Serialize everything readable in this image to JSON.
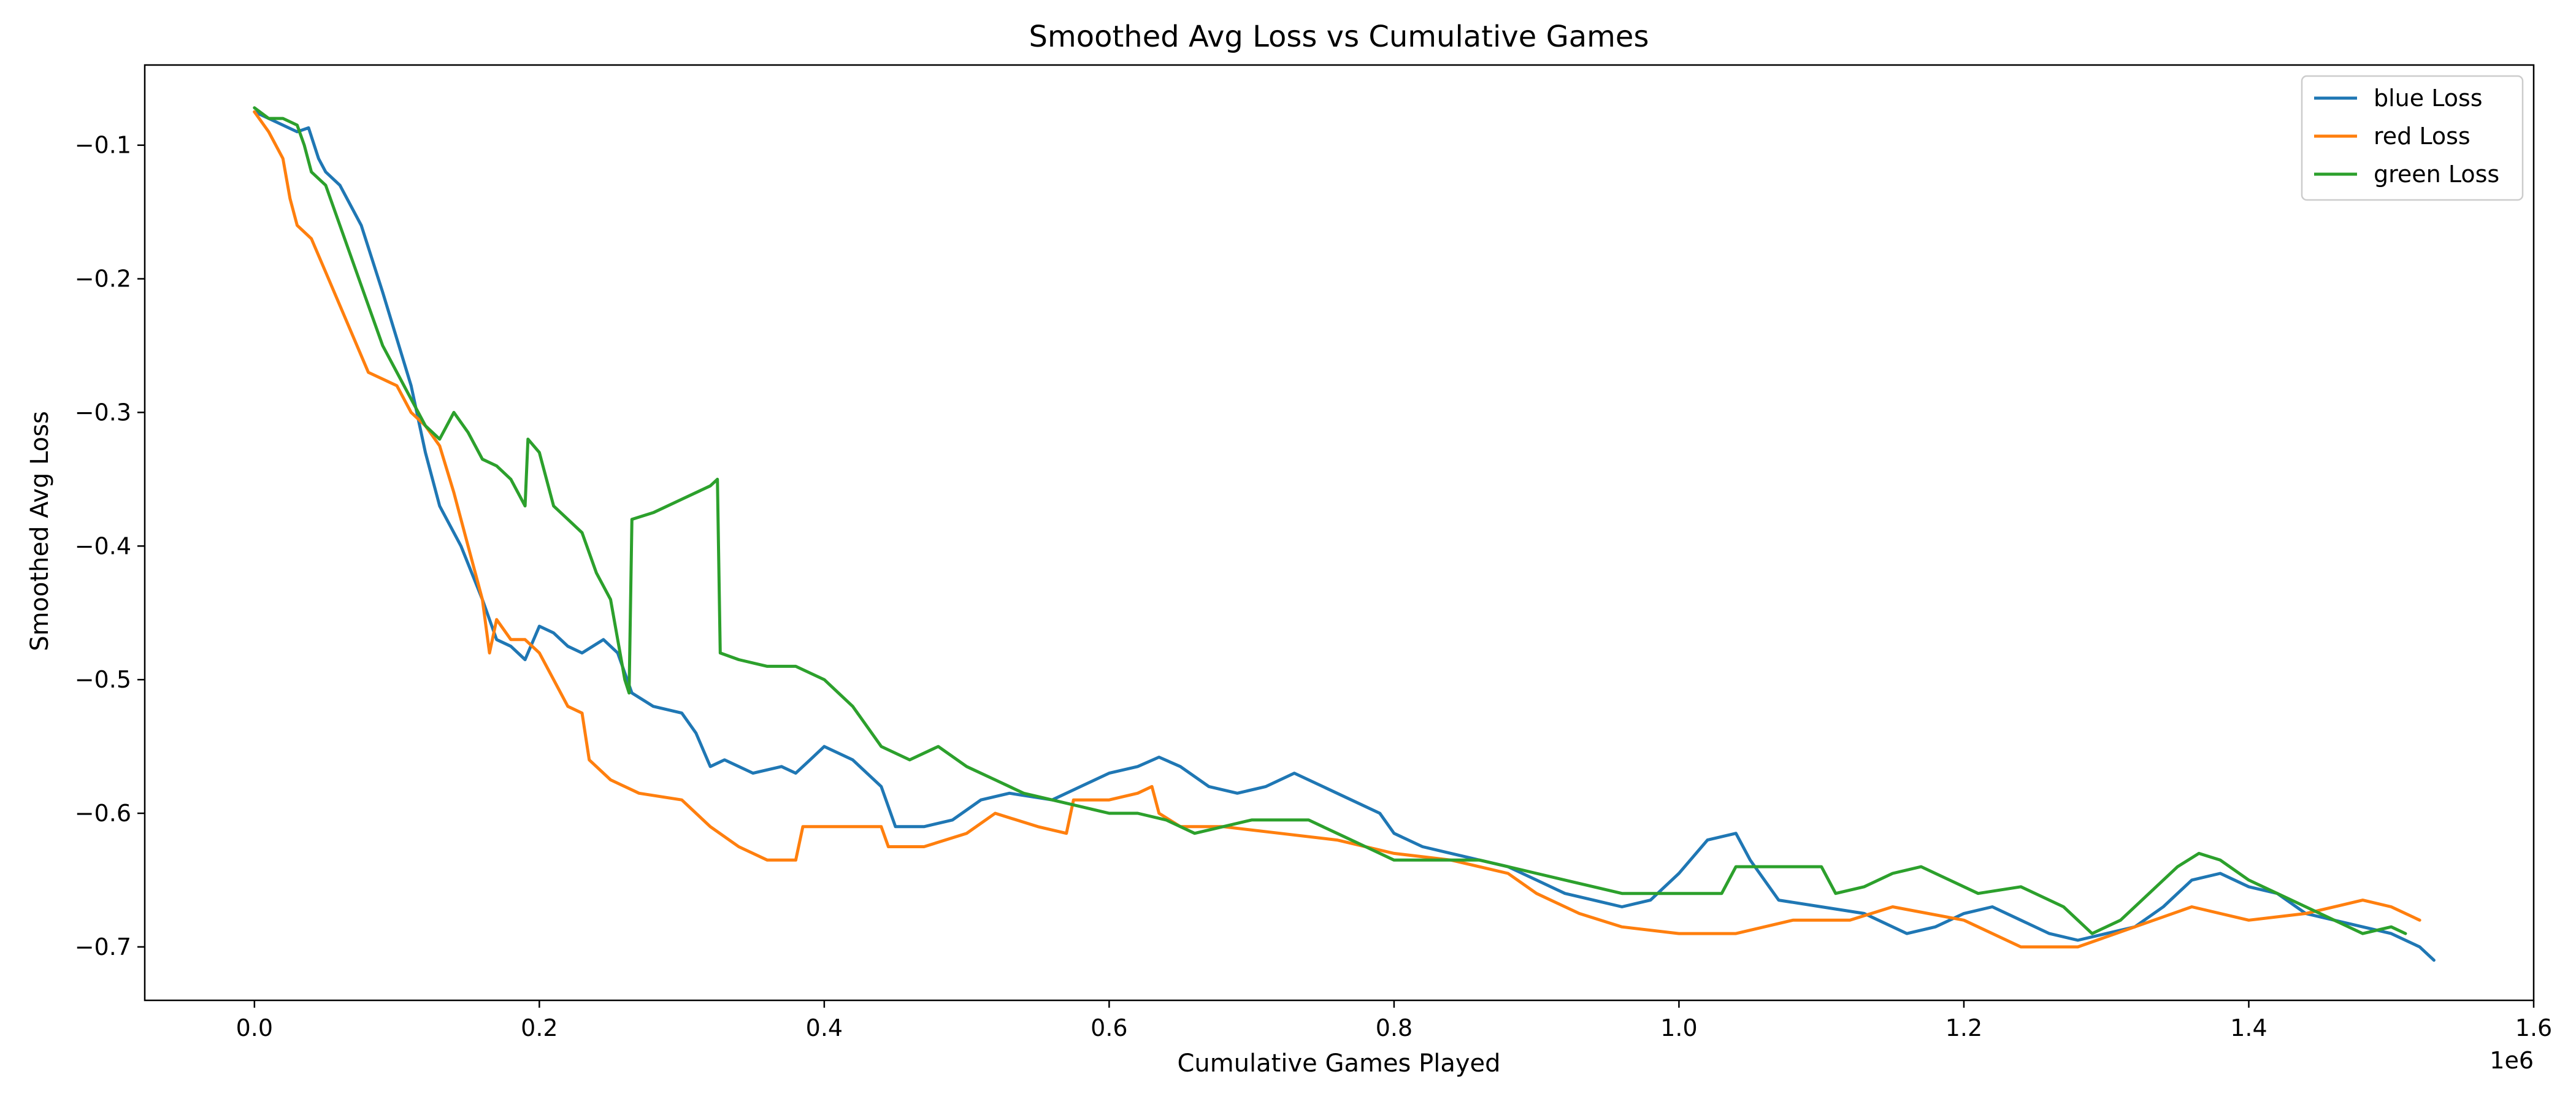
{
  "chart_data": {
    "type": "line",
    "title": "Smoothed Avg Loss vs Cumulative Games",
    "xlabel": "Cumulative Games Played",
    "ylabel": "Smoothed Avg Loss",
    "x_scale_label": "1e6",
    "xlim": [
      -0.077,
      1.6
    ],
    "ylim": [
      -0.74,
      -0.04
    ],
    "xticks": [
      0.0,
      0.2,
      0.4,
      0.6,
      0.8,
      1.0,
      1.2,
      1.4,
      1.6
    ],
    "xtick_labels": [
      "0.0",
      "0.2",
      "0.4",
      "0.6",
      "0.8",
      "1.0",
      "1.2",
      "1.4",
      "1.6"
    ],
    "yticks": [
      -0.1,
      -0.2,
      -0.3,
      -0.4,
      -0.5,
      -0.6,
      -0.7
    ],
    "ytick_labels": [
      "−0.1",
      "−0.2",
      "−0.3",
      "−0.4",
      "−0.5",
      "−0.6",
      "−0.7"
    ],
    "grid": false,
    "legend_position": "top-right",
    "series": [
      {
        "name": "blue Loss",
        "color": "#1f77b4",
        "points": [
          [
            0.0,
            -0.075
          ],
          [
            0.01,
            -0.08
          ],
          [
            0.02,
            -0.085
          ],
          [
            0.03,
            -0.09
          ],
          [
            0.038,
            -0.087
          ],
          [
            0.045,
            -0.11
          ],
          [
            0.05,
            -0.12
          ],
          [
            0.06,
            -0.13
          ],
          [
            0.075,
            -0.16
          ],
          [
            0.09,
            -0.21
          ],
          [
            0.1,
            -0.245
          ],
          [
            0.11,
            -0.28
          ],
          [
            0.12,
            -0.33
          ],
          [
            0.13,
            -0.37
          ],
          [
            0.145,
            -0.4
          ],
          [
            0.16,
            -0.44
          ],
          [
            0.17,
            -0.47
          ],
          [
            0.18,
            -0.475
          ],
          [
            0.19,
            -0.485
          ],
          [
            0.2,
            -0.46
          ],
          [
            0.21,
            -0.465
          ],
          [
            0.22,
            -0.475
          ],
          [
            0.23,
            -0.48
          ],
          [
            0.245,
            -0.47
          ],
          [
            0.255,
            -0.48
          ],
          [
            0.265,
            -0.51
          ],
          [
            0.28,
            -0.52
          ],
          [
            0.3,
            -0.525
          ],
          [
            0.31,
            -0.54
          ],
          [
            0.32,
            -0.565
          ],
          [
            0.33,
            -0.56
          ],
          [
            0.35,
            -0.57
          ],
          [
            0.37,
            -0.565
          ],
          [
            0.38,
            -0.57
          ],
          [
            0.39,
            -0.56
          ],
          [
            0.4,
            -0.55
          ],
          [
            0.42,
            -0.56
          ],
          [
            0.44,
            -0.58
          ],
          [
            0.45,
            -0.61
          ],
          [
            0.47,
            -0.61
          ],
          [
            0.49,
            -0.605
          ],
          [
            0.51,
            -0.59
          ],
          [
            0.53,
            -0.585
          ],
          [
            0.56,
            -0.59
          ],
          [
            0.58,
            -0.58
          ],
          [
            0.6,
            -0.57
          ],
          [
            0.62,
            -0.565
          ],
          [
            0.635,
            -0.558
          ],
          [
            0.65,
            -0.565
          ],
          [
            0.67,
            -0.58
          ],
          [
            0.69,
            -0.585
          ],
          [
            0.71,
            -0.58
          ],
          [
            0.73,
            -0.57
          ],
          [
            0.75,
            -0.58
          ],
          [
            0.77,
            -0.59
          ],
          [
            0.79,
            -0.6
          ],
          [
            0.8,
            -0.615
          ],
          [
            0.82,
            -0.625
          ],
          [
            0.84,
            -0.63
          ],
          [
            0.86,
            -0.635
          ],
          [
            0.88,
            -0.64
          ],
          [
            0.9,
            -0.65
          ],
          [
            0.92,
            -0.66
          ],
          [
            0.94,
            -0.665
          ],
          [
            0.96,
            -0.67
          ],
          [
            0.98,
            -0.665
          ],
          [
            1.0,
            -0.645
          ],
          [
            1.02,
            -0.62
          ],
          [
            1.04,
            -0.615
          ],
          [
            1.05,
            -0.635
          ],
          [
            1.07,
            -0.665
          ],
          [
            1.1,
            -0.67
          ],
          [
            1.13,
            -0.675
          ],
          [
            1.16,
            -0.69
          ],
          [
            1.18,
            -0.685
          ],
          [
            1.2,
            -0.675
          ],
          [
            1.22,
            -0.67
          ],
          [
            1.24,
            -0.68
          ],
          [
            1.26,
            -0.69
          ],
          [
            1.28,
            -0.695
          ],
          [
            1.3,
            -0.69
          ],
          [
            1.32,
            -0.685
          ],
          [
            1.34,
            -0.67
          ],
          [
            1.36,
            -0.65
          ],
          [
            1.38,
            -0.645
          ],
          [
            1.4,
            -0.655
          ],
          [
            1.42,
            -0.66
          ],
          [
            1.44,
            -0.675
          ],
          [
            1.46,
            -0.68
          ],
          [
            1.48,
            -0.685
          ],
          [
            1.5,
            -0.69
          ],
          [
            1.52,
            -0.7
          ],
          [
            1.53,
            -0.71
          ]
        ]
      },
      {
        "name": "red Loss",
        "color": "#ff7f0e",
        "points": [
          [
            0.0,
            -0.075
          ],
          [
            0.01,
            -0.09
          ],
          [
            0.02,
            -0.11
          ],
          [
            0.025,
            -0.14
          ],
          [
            0.03,
            -0.16
          ],
          [
            0.04,
            -0.17
          ],
          [
            0.05,
            -0.195
          ],
          [
            0.06,
            -0.22
          ],
          [
            0.07,
            -0.245
          ],
          [
            0.08,
            -0.27
          ],
          [
            0.09,
            -0.275
          ],
          [
            0.1,
            -0.28
          ],
          [
            0.11,
            -0.3
          ],
          [
            0.12,
            -0.31
          ],
          [
            0.13,
            -0.325
          ],
          [
            0.14,
            -0.36
          ],
          [
            0.15,
            -0.4
          ],
          [
            0.16,
            -0.44
          ],
          [
            0.165,
            -0.48
          ],
          [
            0.17,
            -0.455
          ],
          [
            0.18,
            -0.47
          ],
          [
            0.19,
            -0.47
          ],
          [
            0.2,
            -0.48
          ],
          [
            0.21,
            -0.5
          ],
          [
            0.22,
            -0.52
          ],
          [
            0.23,
            -0.525
          ],
          [
            0.235,
            -0.56
          ],
          [
            0.25,
            -0.575
          ],
          [
            0.26,
            -0.58
          ],
          [
            0.27,
            -0.585
          ],
          [
            0.3,
            -0.59
          ],
          [
            0.32,
            -0.61
          ],
          [
            0.34,
            -0.625
          ],
          [
            0.36,
            -0.635
          ],
          [
            0.38,
            -0.635
          ],
          [
            0.385,
            -0.61
          ],
          [
            0.4,
            -0.61
          ],
          [
            0.42,
            -0.61
          ],
          [
            0.44,
            -0.61
          ],
          [
            0.445,
            -0.625
          ],
          [
            0.47,
            -0.625
          ],
          [
            0.5,
            -0.615
          ],
          [
            0.52,
            -0.6
          ],
          [
            0.55,
            -0.61
          ],
          [
            0.57,
            -0.615
          ],
          [
            0.575,
            -0.59
          ],
          [
            0.6,
            -0.59
          ],
          [
            0.62,
            -0.585
          ],
          [
            0.63,
            -0.58
          ],
          [
            0.635,
            -0.6
          ],
          [
            0.65,
            -0.61
          ],
          [
            0.68,
            -0.61
          ],
          [
            0.72,
            -0.615
          ],
          [
            0.76,
            -0.62
          ],
          [
            0.8,
            -0.63
          ],
          [
            0.84,
            -0.635
          ],
          [
            0.88,
            -0.645
          ],
          [
            0.9,
            -0.66
          ],
          [
            0.93,
            -0.675
          ],
          [
            0.96,
            -0.685
          ],
          [
            1.0,
            -0.69
          ],
          [
            1.04,
            -0.69
          ],
          [
            1.08,
            -0.68
          ],
          [
            1.12,
            -0.68
          ],
          [
            1.15,
            -0.67
          ],
          [
            1.2,
            -0.68
          ],
          [
            1.24,
            -0.7
          ],
          [
            1.28,
            -0.7
          ],
          [
            1.32,
            -0.685
          ],
          [
            1.36,
            -0.67
          ],
          [
            1.4,
            -0.68
          ],
          [
            1.44,
            -0.675
          ],
          [
            1.48,
            -0.665
          ],
          [
            1.5,
            -0.67
          ],
          [
            1.52,
            -0.68
          ]
        ]
      },
      {
        "name": "green Loss",
        "color": "#2ca02c",
        "points": [
          [
            0.0,
            -0.072
          ],
          [
            0.01,
            -0.08
          ],
          [
            0.02,
            -0.08
          ],
          [
            0.03,
            -0.085
          ],
          [
            0.035,
            -0.1
          ],
          [
            0.04,
            -0.12
          ],
          [
            0.05,
            -0.13
          ],
          [
            0.06,
            -0.16
          ],
          [
            0.07,
            -0.19
          ],
          [
            0.08,
            -0.22
          ],
          [
            0.09,
            -0.25
          ],
          [
            0.1,
            -0.27
          ],
          [
            0.11,
            -0.29
          ],
          [
            0.12,
            -0.31
          ],
          [
            0.13,
            -0.32
          ],
          [
            0.14,
            -0.3
          ],
          [
            0.15,
            -0.315
          ],
          [
            0.16,
            -0.335
          ],
          [
            0.17,
            -0.34
          ],
          [
            0.18,
            -0.35
          ],
          [
            0.19,
            -0.37
          ],
          [
            0.192,
            -0.32
          ],
          [
            0.2,
            -0.33
          ],
          [
            0.21,
            -0.37
          ],
          [
            0.22,
            -0.38
          ],
          [
            0.23,
            -0.39
          ],
          [
            0.24,
            -0.42
          ],
          [
            0.25,
            -0.44
          ],
          [
            0.26,
            -0.5
          ],
          [
            0.263,
            -0.51
          ],
          [
            0.265,
            -0.38
          ],
          [
            0.28,
            -0.375
          ],
          [
            0.3,
            -0.365
          ],
          [
            0.32,
            -0.355
          ],
          [
            0.325,
            -0.35
          ],
          [
            0.327,
            -0.48
          ],
          [
            0.34,
            -0.485
          ],
          [
            0.36,
            -0.49
          ],
          [
            0.38,
            -0.49
          ],
          [
            0.4,
            -0.5
          ],
          [
            0.42,
            -0.52
          ],
          [
            0.44,
            -0.55
          ],
          [
            0.46,
            -0.56
          ],
          [
            0.48,
            -0.55
          ],
          [
            0.5,
            -0.565
          ],
          [
            0.52,
            -0.575
          ],
          [
            0.54,
            -0.585
          ],
          [
            0.56,
            -0.59
          ],
          [
            0.58,
            -0.595
          ],
          [
            0.6,
            -0.6
          ],
          [
            0.62,
            -0.6
          ],
          [
            0.64,
            -0.605
          ],
          [
            0.66,
            -0.615
          ],
          [
            0.68,
            -0.61
          ],
          [
            0.7,
            -0.605
          ],
          [
            0.72,
            -0.605
          ],
          [
            0.74,
            -0.605
          ],
          [
            0.76,
            -0.615
          ],
          [
            0.78,
            -0.625
          ],
          [
            0.8,
            -0.635
          ],
          [
            0.82,
            -0.635
          ],
          [
            0.84,
            -0.635
          ],
          [
            0.86,
            -0.635
          ],
          [
            0.88,
            -0.64
          ],
          [
            0.9,
            -0.645
          ],
          [
            0.92,
            -0.65
          ],
          [
            0.94,
            -0.655
          ],
          [
            0.96,
            -0.66
          ],
          [
            0.98,
            -0.66
          ],
          [
            1.0,
            -0.66
          ],
          [
            1.03,
            -0.66
          ],
          [
            1.04,
            -0.64
          ],
          [
            1.06,
            -0.64
          ],
          [
            1.1,
            -0.64
          ],
          [
            1.11,
            -0.66
          ],
          [
            1.13,
            -0.655
          ],
          [
            1.15,
            -0.645
          ],
          [
            1.17,
            -0.64
          ],
          [
            1.19,
            -0.65
          ],
          [
            1.21,
            -0.66
          ],
          [
            1.24,
            -0.655
          ],
          [
            1.27,
            -0.67
          ],
          [
            1.29,
            -0.69
          ],
          [
            1.31,
            -0.68
          ],
          [
            1.33,
            -0.66
          ],
          [
            1.35,
            -0.64
          ],
          [
            1.365,
            -0.63
          ],
          [
            1.38,
            -0.635
          ],
          [
            1.4,
            -0.65
          ],
          [
            1.42,
            -0.66
          ],
          [
            1.44,
            -0.67
          ],
          [
            1.46,
            -0.68
          ],
          [
            1.48,
            -0.69
          ],
          [
            1.5,
            -0.685
          ],
          [
            1.51,
            -0.69
          ]
        ]
      }
    ]
  }
}
